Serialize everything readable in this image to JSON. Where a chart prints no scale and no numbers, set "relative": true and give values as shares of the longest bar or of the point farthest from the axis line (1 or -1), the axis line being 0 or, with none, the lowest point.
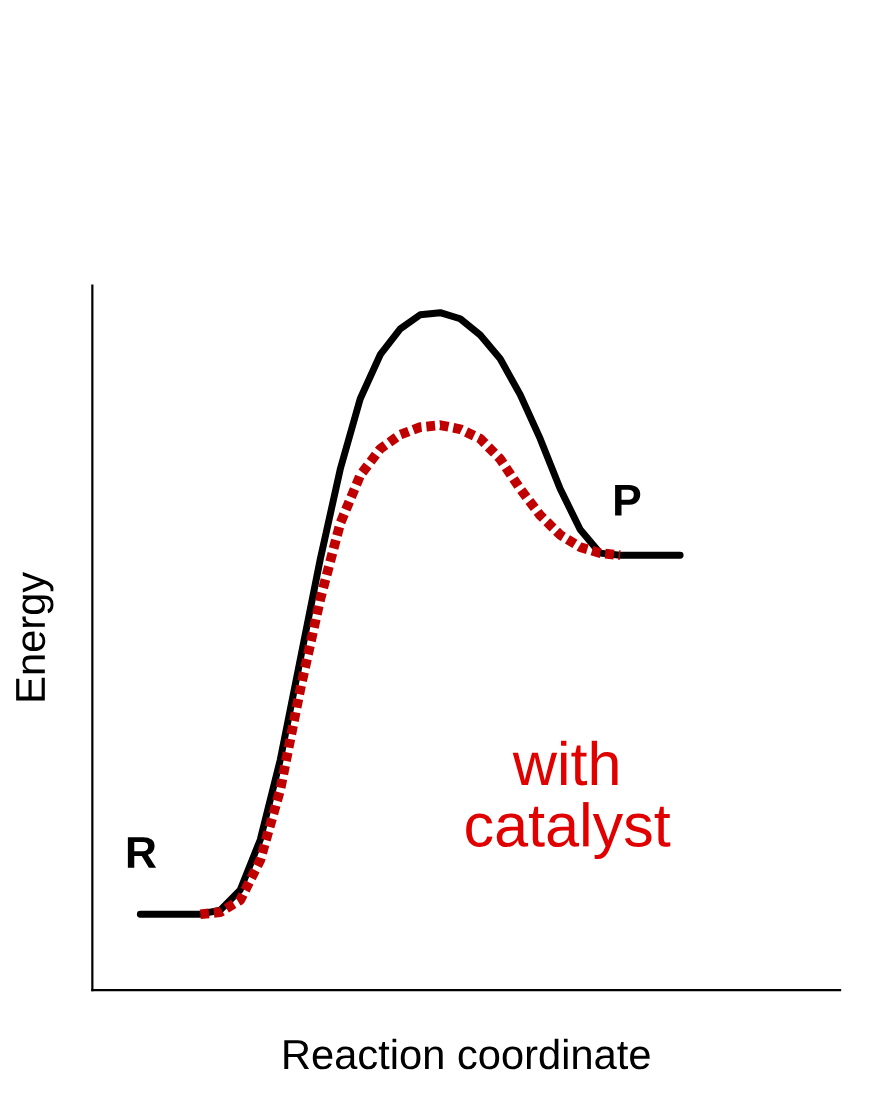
{
  "chart_data": {
    "type": "line",
    "relative": true,
    "xlabel": "Reaction coordinate",
    "ylabel": "Energy",
    "categories": [
      null,
      null,
      null,
      null,
      null,
      null,
      null,
      null,
      null,
      null,
      null,
      null,
      null,
      null,
      null,
      null,
      null,
      null,
      null,
      null,
      null,
      null,
      null,
      null,
      null,
      null,
      null,
      null
    ],
    "series": [
      {
        "color": "#000000",
        "line_style": "solid",
        "values": [
          0.112,
          0.112,
          0.112,
          0.112,
          0.118,
          0.148,
          0.222,
          0.34,
          0.488,
          0.636,
          0.769,
          0.873,
          0.938,
          0.976,
          0.997,
          1,
          0.991,
          0.967,
          0.932,
          0.879,
          0.814,
          0.74,
          0.68,
          0.645,
          0.642,
          0.642,
          0.642,
          0.642
        ]
      },
      {
        "color": "#c00000",
        "line_style": "dotted",
        "values": [
          null,
          null,
          null,
          0.112,
          0.115,
          0.133,
          0.192,
          0.296,
          0.444,
          0.577,
          0.689,
          0.76,
          0.799,
          0.82,
          0.831,
          0.834,
          0.828,
          0.814,
          0.784,
          0.74,
          0.701,
          0.672,
          0.654,
          0.645,
          0.642,
          null,
          null,
          null
        ]
      }
    ],
    "annotations": [
      "R",
      "P",
      "with\ncatalyst"
    ],
    "grid": false,
    "legend": false
  }
}
